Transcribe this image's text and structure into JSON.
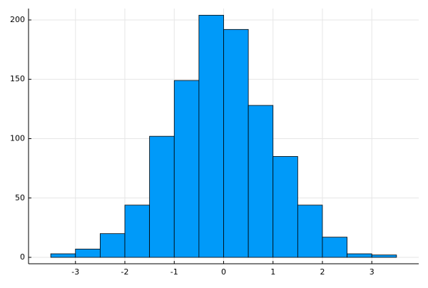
{
  "chart_data": {
    "type": "histogram",
    "bins": [
      -3.5,
      -3,
      -2.5,
      -2,
      -1.5,
      -1,
      -0.5,
      0,
      0.5,
      1,
      1.5,
      2,
      2.5,
      3,
      3.5
    ],
    "values": [
      3,
      7,
      20,
      44,
      102,
      149,
      204,
      192,
      128,
      85,
      44,
      17,
      3,
      2
    ],
    "color": "#009af9",
    "xlim": [
      -3.95,
      3.95
    ],
    "xticks": [
      -3,
      -2,
      -1,
      0,
      1,
      2,
      3
    ],
    "ylim": [
      -5.4,
      209.6
    ],
    "yticks": [
      0,
      50,
      100,
      150,
      200
    ],
    "grid": true
  }
}
